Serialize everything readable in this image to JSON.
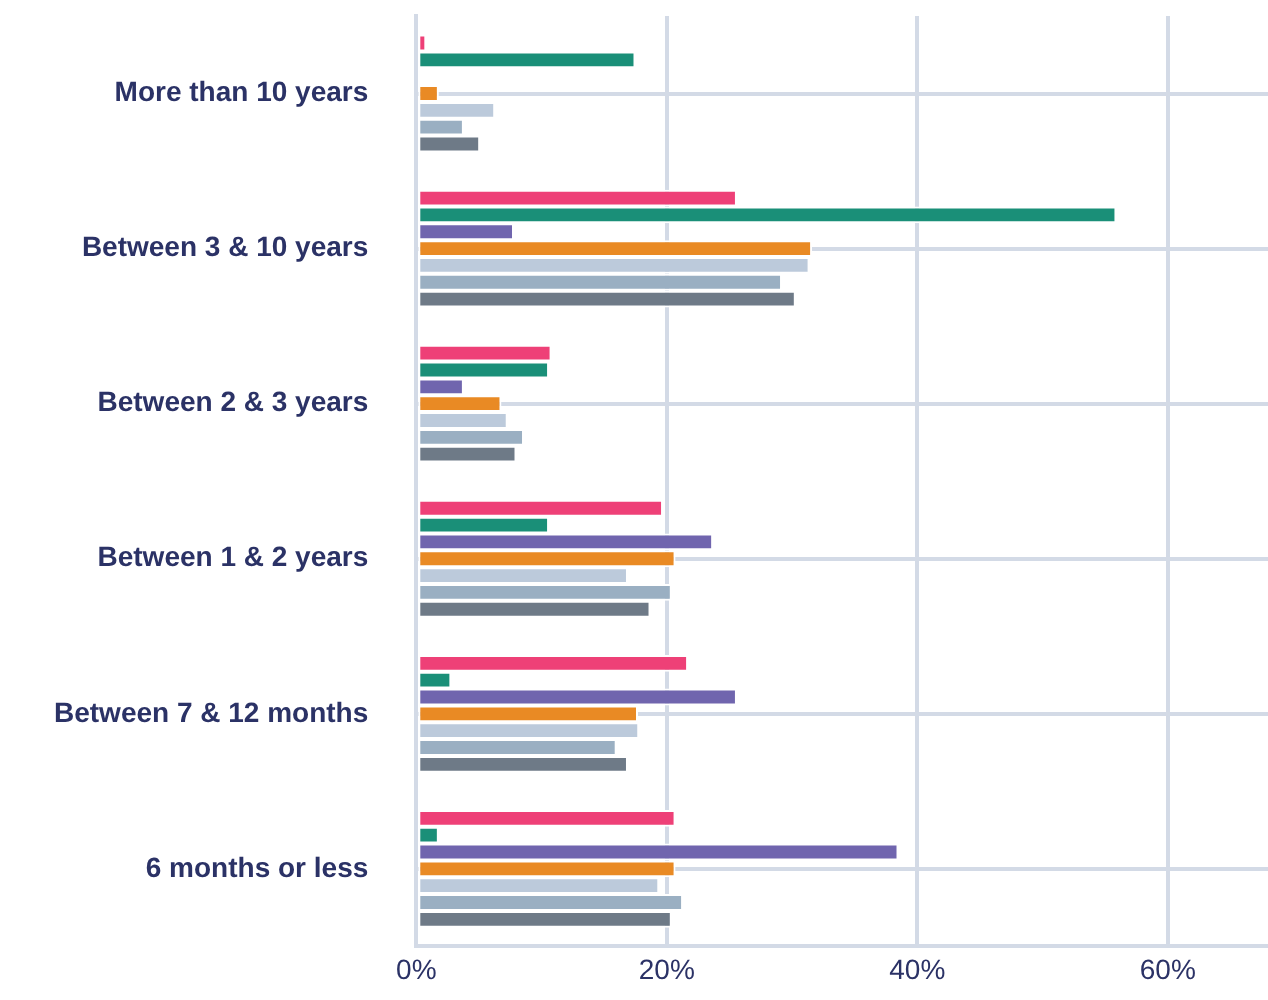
{
  "chart_data": {
    "type": "bar",
    "orientation": "horizontal",
    "categories": [
      "More than 10 years",
      "Between 3 & 10 years",
      "Between 2 & 3 years",
      "Between 1 & 2 years",
      "Between 7 & 12 months",
      "6 months or less"
    ],
    "series": [
      {
        "color": "#ee4077",
        "values": [
          0.8,
          25.6,
          10.8,
          19.7,
          21.7,
          20.7
        ]
      },
      {
        "color": "#1a8f78",
        "values": [
          17.5,
          55.9,
          10.6,
          10.6,
          2.8,
          1.8
        ]
      },
      {
        "color": "#7065ae",
        "values": [
          null,
          7.8,
          3.8,
          23.7,
          25.6,
          38.5
        ]
      },
      {
        "color": "#e98a24",
        "values": [
          1.8,
          31.6,
          6.8,
          20.7,
          17.7,
          20.7
        ]
      },
      {
        "color": "#bccadb",
        "values": [
          6.3,
          31.4,
          7.3,
          16.9,
          17.8,
          19.4
        ]
      },
      {
        "color": "#9aafc2",
        "values": [
          3.8,
          29.2,
          8.6,
          20.4,
          16.0,
          21.3
        ]
      },
      {
        "color": "#6e7a87",
        "values": [
          5.1,
          30.3,
          8.0,
          18.7,
          16.9,
          20.4
        ]
      }
    ],
    "xlim": [
      0,
      68
    ],
    "xticks": [
      {
        "value": 0,
        "label": "0%"
      },
      {
        "value": 20,
        "label": "20%"
      },
      {
        "value": 40,
        "label": "40%"
      },
      {
        "value": 60,
        "label": "60%"
      }
    ],
    "grid": true
  }
}
